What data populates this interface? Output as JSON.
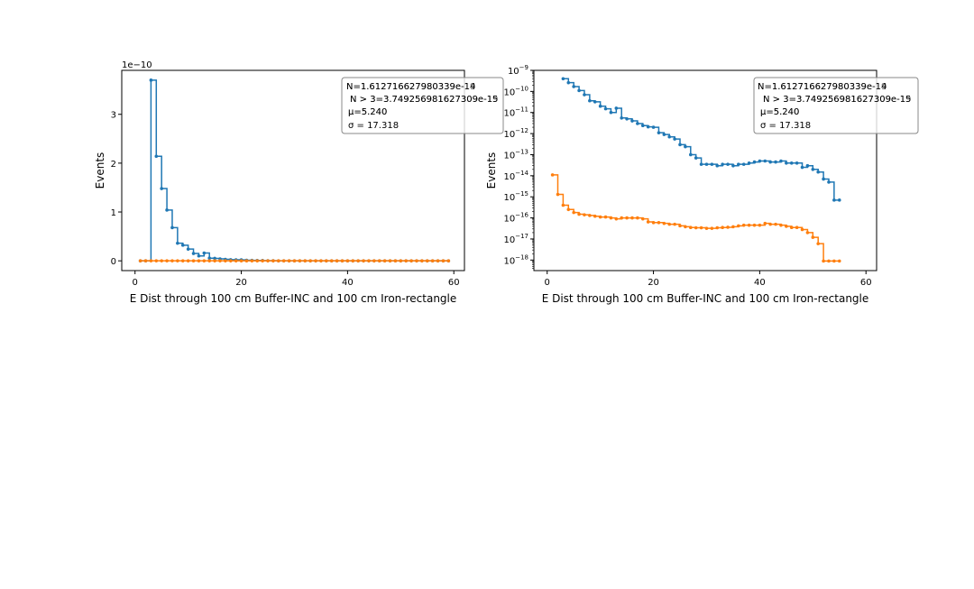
{
  "chart_data": [
    {
      "type": "line",
      "scale": "linear",
      "xlabel": "E Dist through 100 cm Buffer-INC and 100 cm Iron-rectangle",
      "ylabel": "Events",
      "exponent_label": "1e−10",
      "xlim": [
        -2.5,
        62
      ],
      "ylim": [
        -2e-11,
        3.9e-10
      ],
      "xticks": [
        0,
        20,
        40,
        60
      ],
      "xtick_labels": [
        "0",
        "20",
        "40",
        "60"
      ],
      "yticks": [
        0,
        1e-10,
        2e-10,
        3e-10
      ],
      "ytick_labels": [
        "0",
        "1",
        "2",
        "3"
      ],
      "legend_box": {
        "position": "top-right",
        "lines": [
          [
            "N=1.61271662798033​9e-14",
            "N=1.61271662798033​9e-19"
          ],
          [
            "N > 3=3.749256981627309e-15",
            "N > 3=3.749256981627309e-19"
          ],
          [
            "μ=5.240",
            "μ=5.240"
          ],
          [
            "σ = 17.318"
          ]
        ]
      },
      "series": [
        {
          "name": "blue",
          "color": "#1f77b4",
          "x": [
            1,
            2,
            3,
            4,
            5,
            6,
            7,
            8,
            9,
            10,
            11,
            12,
            13,
            14,
            15,
            16,
            17,
            18,
            19,
            20,
            21,
            22,
            23,
            24,
            25,
            26,
            27,
            28,
            29,
            30,
            31,
            32,
            33,
            34,
            35,
            36,
            37,
            38,
            39,
            40,
            41,
            42,
            43,
            44,
            45,
            46,
            47,
            48,
            49,
            50,
            51,
            52,
            53,
            54,
            55,
            56,
            57,
            58,
            59
          ],
          "values": [
            0,
            0,
            3.7e-10,
            2.14e-10,
            1.48e-10,
            1.04e-10,
            6.8e-11,
            3.6e-11,
            3.2e-11,
            2.4e-11,
            1.5e-11,
            1e-11,
            1.6e-11,
            5.5e-12,
            5e-12,
            4e-12,
            3e-12,
            2.4e-12,
            2.1e-12,
            2e-12,
            1.2e-12,
            1e-12,
            8e-13,
            6e-13,
            3e-13,
            2.4e-13,
            1e-13,
            7e-14,
            3.5e-14,
            3.5e-14,
            3.5e-14,
            3e-14,
            3.5e-14,
            3.5e-14,
            3e-14,
            3.5e-14,
            3.5e-14,
            4e-14,
            4.5e-14,
            5e-14,
            5e-14,
            4.5e-14,
            4.5e-14,
            5e-14,
            4e-14,
            4e-14,
            4e-14,
            2.5e-14,
            3e-14,
            2e-14,
            1.5e-14,
            7e-15,
            5e-15,
            7e-16,
            0,
            0,
            0,
            0,
            0
          ]
        },
        {
          "name": "orange",
          "color": "#ff7f0e",
          "x": [
            1,
            2,
            3,
            4,
            5,
            6,
            7,
            8,
            9,
            10,
            11,
            12,
            13,
            14,
            15,
            16,
            17,
            18,
            19,
            20,
            21,
            22,
            23,
            24,
            25,
            26,
            27,
            28,
            29,
            30,
            31,
            32,
            33,
            34,
            35,
            36,
            37,
            38,
            39,
            40,
            41,
            42,
            43,
            44,
            45,
            46,
            47,
            48,
            49,
            50,
            51,
            52,
            53,
            54,
            55,
            56,
            57,
            58,
            59
          ],
          "values": [
            1.1e-14,
            1.3e-15,
            4e-16,
            2e-16,
            1.6e-16,
            1.4e-16,
            1.3e-16,
            1.2e-16,
            1.1e-16,
            1e-16,
            9e-17,
            9e-17,
            1e-16,
            1e-16,
            1e-16,
            9e-17,
            6e-17,
            6e-17,
            6e-17,
            5.5e-17,
            5e-17,
            5e-17,
            4e-17,
            3.8e-17,
            3.5e-17,
            3.4e-17,
            3.4e-17,
            3.2e-17,
            3.2e-17,
            3.4e-17,
            3.5e-17,
            3.6e-17,
            3.8e-17,
            4.2e-17,
            4.5e-17,
            4.5e-17,
            4.5e-17,
            4.5e-17,
            5.5e-17,
            5e-17,
            5e-17,
            4.5e-17,
            4e-17,
            3.5e-17,
            3.5e-17,
            2.8e-17,
            2e-17,
            1.2e-17,
            6e-18,
            9e-19,
            0,
            0,
            0,
            0,
            0,
            0,
            0,
            0,
            0
          ]
        }
      ]
    },
    {
      "type": "line",
      "scale": "log",
      "xlabel": "E Dist through 100 cm Buffer-INC and 100 cm Iron-rectangle",
      "ylabel": "Events",
      "xlim": [
        -2.5,
        62
      ],
      "ylim_log10": [
        -18.5,
        -9
      ],
      "xticks": [
        0,
        20,
        40,
        60
      ],
      "xtick_labels": [
        "0",
        "20",
        "40",
        "60"
      ],
      "ytick_exponents": [
        -9,
        -10,
        -11,
        -12,
        -13,
        -14,
        -15,
        -16,
        -17,
        -18
      ],
      "ytick_base": "10",
      "legend_box": {
        "position": "top-right",
        "lines": [
          [
            "N=1.61271662798033​9e-14",
            "N=1.61271662798033​9e-19"
          ],
          [
            "N > 3=3.749256981627309e-15",
            "N > 3=3.749256981627309e-19"
          ],
          [
            "μ=5.240",
            "μ=5.240"
          ],
          [
            "σ = 17.318"
          ]
        ]
      },
      "series": [
        {
          "name": "blue",
          "color": "#1f77b4",
          "x": [
            3,
            4,
            5,
            6,
            7,
            8,
            9,
            10,
            11,
            12,
            13,
            14,
            15,
            16,
            17,
            18,
            19,
            20,
            21,
            22,
            23,
            24,
            25,
            26,
            27,
            28,
            29,
            30,
            31,
            32,
            33,
            34,
            35,
            36,
            37,
            38,
            39,
            40,
            41,
            42,
            43,
            44,
            45,
            46,
            47,
            48,
            49,
            50,
            51,
            52,
            53,
            54,
            55
          ],
          "values": [
            4e-10,
            2.6e-10,
            1.7e-10,
            1.1e-10,
            7e-11,
            3.6e-11,
            3.2e-11,
            2e-11,
            1.5e-11,
            1e-11,
            1.6e-11,
            5.5e-12,
            5e-12,
            4e-12,
            3e-12,
            2.4e-12,
            2.1e-12,
            2e-12,
            1.1e-12,
            9e-13,
            7e-13,
            5.5e-13,
            3e-13,
            2.4e-13,
            1e-13,
            7e-14,
            3.5e-14,
            3.5e-14,
            3.5e-14,
            3e-14,
            3.5e-14,
            3.5e-14,
            3e-14,
            3.5e-14,
            3.5e-14,
            4e-14,
            4.5e-14,
            5e-14,
            5e-14,
            4.5e-14,
            4.5e-14,
            5e-14,
            4e-14,
            4e-14,
            4e-14,
            2.5e-14,
            3e-14,
            2e-14,
            1.5e-14,
            7e-15,
            5e-15,
            7e-16,
            7e-16
          ]
        },
        {
          "name": "orange",
          "color": "#ff7f0e",
          "x": [
            1,
            2,
            3,
            4,
            5,
            6,
            7,
            8,
            9,
            10,
            11,
            12,
            13,
            14,
            15,
            16,
            17,
            18,
            19,
            20,
            21,
            22,
            23,
            24,
            25,
            26,
            27,
            28,
            29,
            30,
            31,
            32,
            33,
            34,
            35,
            36,
            37,
            38,
            39,
            40,
            41,
            42,
            43,
            44,
            45,
            46,
            47,
            48,
            49,
            50,
            51,
            52,
            53,
            54,
            55
          ],
          "values": [
            1.1e-14,
            1.3e-15,
            4e-16,
            2.5e-16,
            1.8e-16,
            1.5e-16,
            1.4e-16,
            1.3e-16,
            1.2e-16,
            1.1e-16,
            1.1e-16,
            1e-16,
            9e-17,
            1e-16,
            1e-16,
            1e-16,
            1e-16,
            9e-17,
            6.5e-17,
            6e-17,
            6e-17,
            5.5e-17,
            5e-17,
            5e-17,
            4.2e-17,
            3.8e-17,
            3.5e-17,
            3.4e-17,
            3.4e-17,
            3.2e-17,
            3.2e-17,
            3.4e-17,
            3.5e-17,
            3.6e-17,
            3.8e-17,
            4.2e-17,
            4.5e-17,
            4.5e-17,
            4.5e-17,
            4.5e-17,
            5.5e-17,
            5e-17,
            5e-17,
            4.5e-17,
            4e-17,
            3.5e-17,
            3.5e-17,
            2.8e-17,
            2e-17,
            1.2e-17,
            6e-18,
            9e-19,
            9e-19,
            9e-19,
            9e-19
          ]
        }
      ]
    }
  ]
}
